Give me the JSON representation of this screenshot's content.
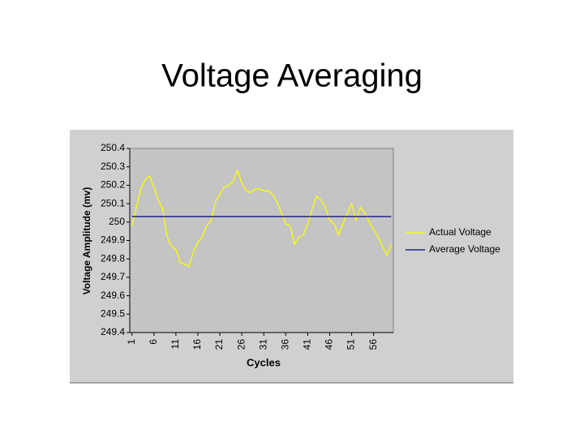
{
  "chart_data": {
    "type": "line",
    "title": "Voltage Averaging",
    "x_label": "Cycles",
    "y_label": "Voltage Amplitude (mv)",
    "categories": [
      1,
      null,
      null,
      null,
      null,
      6,
      null,
      null,
      null,
      null,
      11,
      null,
      null,
      null,
      null,
      16,
      null,
      null,
      null,
      null,
      21,
      null,
      null,
      null,
      null,
      26,
      null,
      null,
      null,
      null,
      31,
      null,
      null,
      null,
      null,
      36,
      null,
      null,
      null,
      null,
      41,
      null,
      null,
      null,
      null,
      46,
      null,
      null,
      null,
      null,
      51,
      null,
      null,
      null,
      null,
      56,
      null,
      null,
      null,
      null
    ],
    "series": [
      {
        "name": "Actual Voltage",
        "color": "#ffff00",
        "values": [
          249.98,
          250.08,
          250.18,
          250.23,
          250.25,
          250.19,
          250.12,
          250.07,
          249.92,
          249.87,
          249.85,
          249.78,
          249.77,
          249.76,
          249.84,
          249.89,
          249.92,
          249.98,
          250.01,
          250.11,
          250.15,
          250.19,
          250.2,
          250.22,
          250.28,
          250.21,
          250.17,
          250.16,
          250.18,
          250.18,
          250.17,
          250.17,
          250.15,
          250.11,
          250.05,
          249.99,
          249.98,
          249.88,
          249.92,
          249.93,
          249.99,
          250.07,
          250.14,
          250.12,
          250.08,
          250.01,
          249.99,
          249.93,
          249.99,
          250.05,
          250.1,
          250.01,
          250.08,
          250.05,
          250,
          249.96,
          249.92,
          249.87,
          249.82,
          249.88
        ]
      },
      {
        "name": "Average Voltage",
        "color": "#000080",
        "values": [
          250.03,
          250.03,
          250.03,
          250.03,
          250.03,
          250.03,
          250.03,
          250.03,
          250.03,
          250.03,
          250.03,
          250.03,
          250.03,
          250.03,
          250.03,
          250.03,
          250.03,
          250.03,
          250.03,
          250.03,
          250.03,
          250.03,
          250.03,
          250.03,
          250.03,
          250.03,
          250.03,
          250.03,
          250.03,
          250.03,
          250.03,
          250.03,
          250.03,
          250.03,
          250.03,
          250.03,
          250.03,
          250.03,
          250.03,
          250.03,
          250.03,
          250.03,
          250.03,
          250.03,
          250.03,
          250.03,
          250.03,
          250.03,
          250.03,
          250.03,
          250.03,
          250.03,
          250.03,
          250.03,
          250.03,
          250.03,
          250.03,
          250.03,
          250.03,
          250.03
        ]
      }
    ],
    "ylim": [
      249.4,
      250.4
    ],
    "yticks": [
      249.4,
      249.5,
      249.6,
      249.7,
      249.8,
      249.9,
      250,
      250.1,
      250.2,
      250.3,
      250.4
    ],
    "grid": false,
    "legend": "right"
  }
}
